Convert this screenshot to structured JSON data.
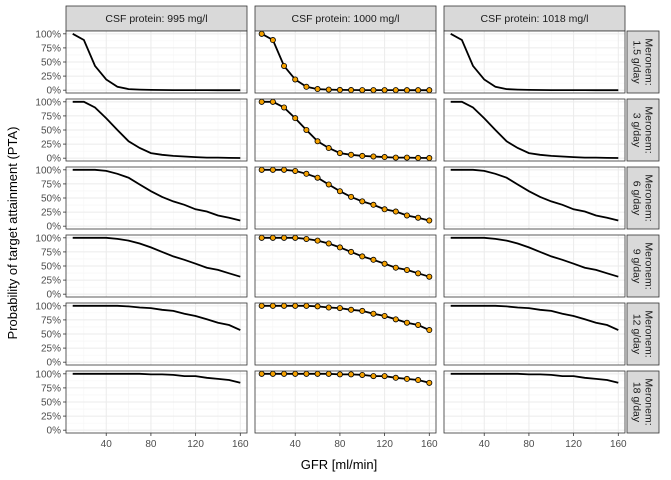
{
  "chart_data": {
    "type": "line",
    "layout": "facet_grid",
    "xlabel": "GFR [ml/min]",
    "ylabel": "Probability of target attainment (PTA)",
    "x": [
      10,
      20,
      30,
      40,
      50,
      60,
      70,
      80,
      90,
      100,
      110,
      120,
      130,
      140,
      150,
      160
    ],
    "xlim": [
      4,
      166
    ],
    "ylim": [
      -0.05,
      1.05
    ],
    "x_ticks": [
      40,
      80,
      120,
      160
    ],
    "y_ticks": [
      0,
      0.25,
      0.5,
      0.75,
      1.0
    ],
    "y_tick_labels": [
      "0%",
      "25%",
      "50%",
      "75%",
      "100%"
    ],
    "x_tick_labels": [
      "40",
      "80",
      "120",
      "160"
    ],
    "columns": [
      "CSF protein: 995 mg/l",
      "CSF protein: 1000 mg/l",
      "CSF protein: 1018 mg/l"
    ],
    "point_column": 1,
    "line_color": "#000000",
    "point_color": "#f5a100",
    "grid": true,
    "rows": [
      {
        "label_line1": "Meronem:",
        "label_line2": "1.5 g/day",
        "values": [
          1.0,
          0.89,
          0.43,
          0.19,
          0.06,
          0.02,
          0.01,
          0.005,
          0.003,
          0.002,
          0.001,
          0.001,
          0.001,
          0.0,
          0.0,
          0.0
        ]
      },
      {
        "label_line1": "Meronem:",
        "label_line2": "3 g/day",
        "values": [
          1.0,
          1.0,
          0.9,
          0.71,
          0.5,
          0.3,
          0.18,
          0.09,
          0.06,
          0.04,
          0.03,
          0.02,
          0.01,
          0.01,
          0.005,
          0.003
        ]
      },
      {
        "label_line1": "Meronem:",
        "label_line2": "6 g/day",
        "values": [
          1.0,
          1.0,
          1.0,
          0.98,
          0.93,
          0.86,
          0.74,
          0.62,
          0.52,
          0.44,
          0.38,
          0.3,
          0.26,
          0.19,
          0.15,
          0.1
        ]
      },
      {
        "label_line1": "Meronem:",
        "label_line2": "9 g/day",
        "values": [
          1.0,
          1.0,
          1.0,
          1.0,
          0.98,
          0.95,
          0.9,
          0.83,
          0.75,
          0.67,
          0.61,
          0.54,
          0.47,
          0.43,
          0.37,
          0.31
        ]
      },
      {
        "label_line1": "Meronem:",
        "label_line2": "12 g/day",
        "values": [
          1.0,
          1.0,
          1.0,
          1.0,
          1.0,
          0.99,
          0.97,
          0.96,
          0.93,
          0.91,
          0.86,
          0.82,
          0.76,
          0.7,
          0.66,
          0.57
        ]
      },
      {
        "label_line1": "Meronem:",
        "label_line2": "18 g/day",
        "values": [
          1.0,
          1.0,
          1.0,
          1.0,
          1.0,
          1.0,
          1.0,
          0.99,
          0.99,
          0.98,
          0.96,
          0.96,
          0.93,
          0.91,
          0.89,
          0.84
        ]
      }
    ]
  }
}
